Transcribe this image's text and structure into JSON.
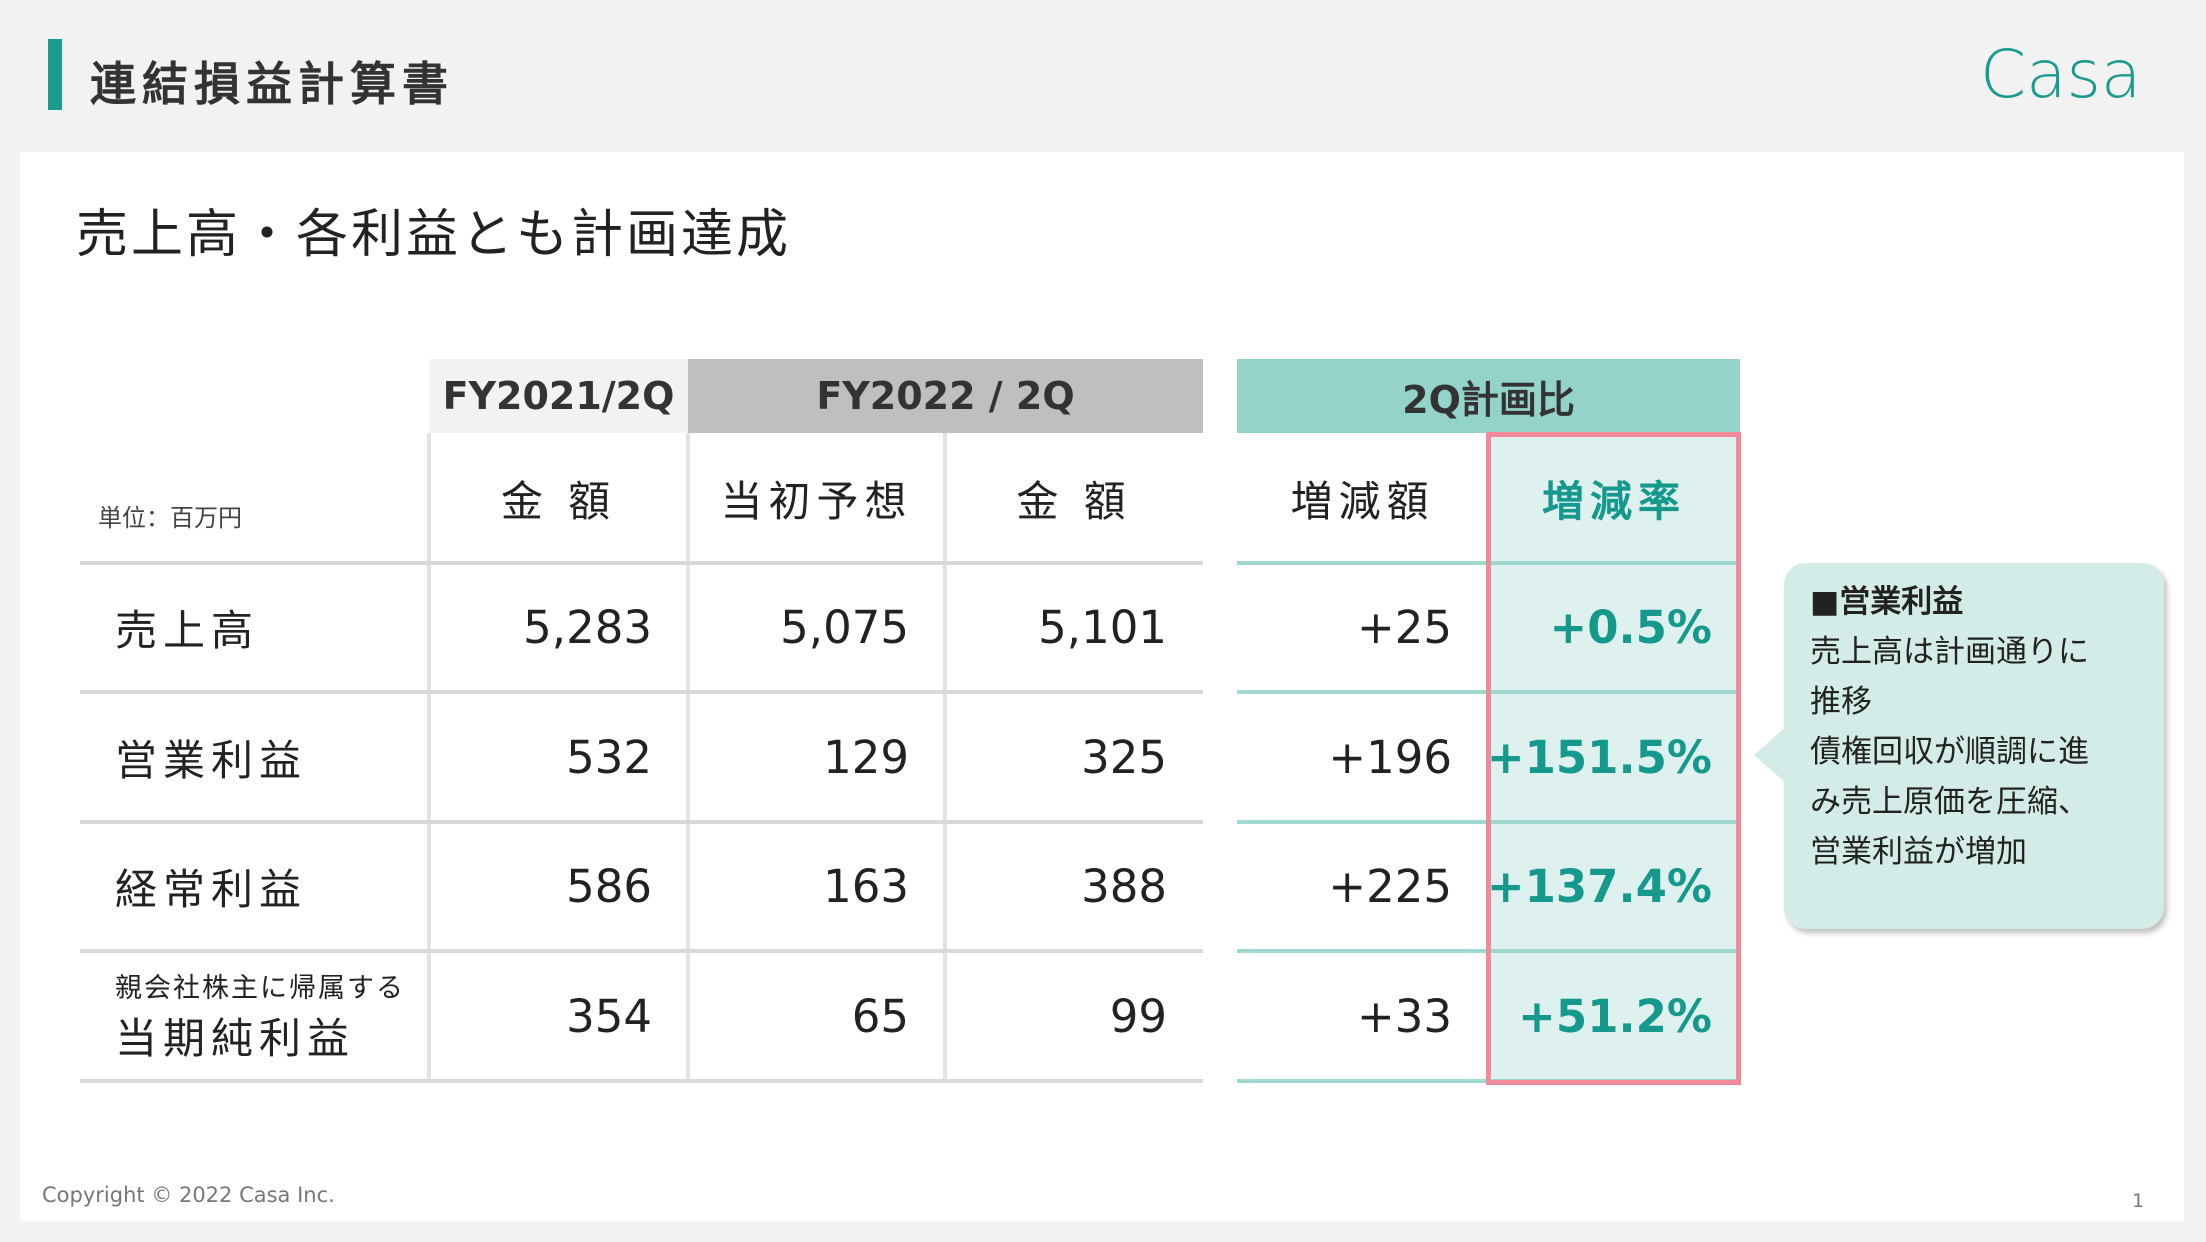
{
  "header": {
    "title": "連結損益計算書",
    "logo": "Casa"
  },
  "subtitle": "売上高・各利益とも計画達成",
  "table": {
    "unit": "単位：百万円",
    "groups": [
      "FY2021/2Q",
      "FY2022 / 2Q",
      "2Q計画比"
    ],
    "columns": [
      "金 額",
      "当初予想",
      "金 額",
      "増減額",
      "増減率"
    ],
    "rows": [
      {
        "label": [
          "売上高"
        ],
        "cells": [
          "5,283",
          "5,075",
          "5,101",
          "+25",
          "+0.5%"
        ]
      },
      {
        "label": [
          "営業利益"
        ],
        "cells": [
          "532",
          "129",
          "325",
          "+196",
          "+151.5%"
        ]
      },
      {
        "label": [
          "経常利益"
        ],
        "cells": [
          "586",
          "163",
          "388",
          "+225",
          "+137.4%"
        ]
      },
      {
        "label": [
          "親会社株主に帰属する",
          "当期純利益"
        ],
        "cells": [
          "354",
          "65",
          "99",
          "+33",
          "+51.2%"
        ]
      }
    ]
  },
  "callout": {
    "title": "■営業利益",
    "lines": [
      "売上高は計画通りに",
      "推移",
      "債権回収が順調に進",
      "み売上原価を圧縮、",
      "営業利益が増加"
    ]
  },
  "footer": {
    "copyright": "Copyright © 2022 Casa Inc.",
    "page": "1"
  }
}
